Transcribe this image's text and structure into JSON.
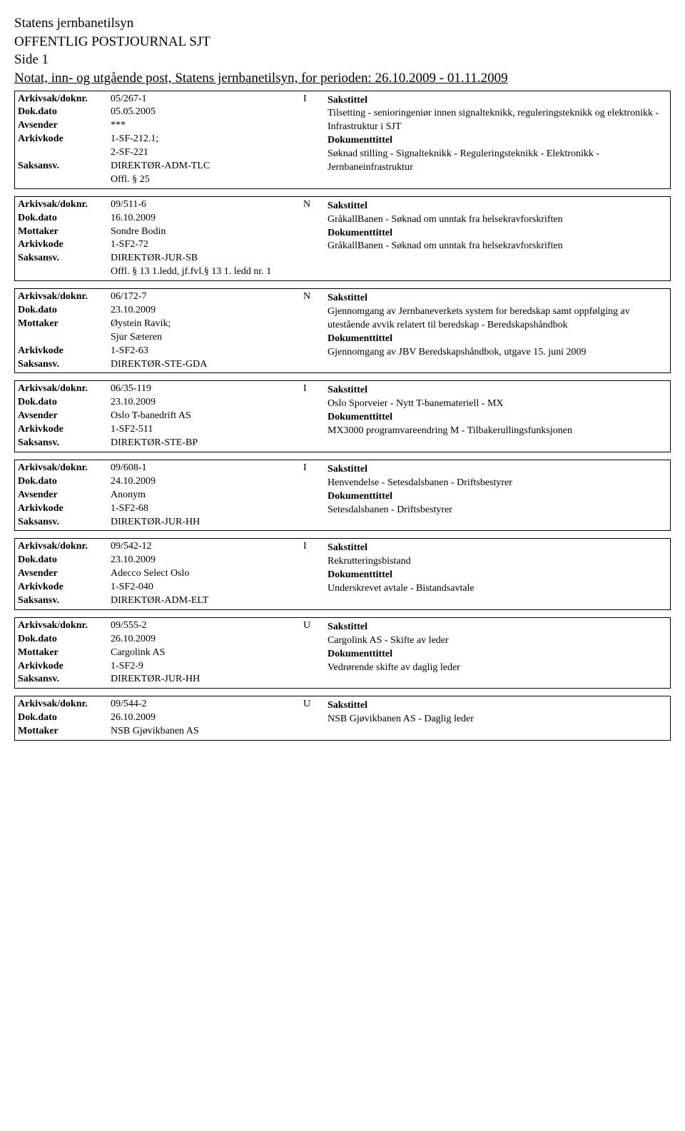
{
  "header": {
    "org": "Statens jernbanetilsyn",
    "title": "OFFENTLIG POSTJOURNAL SJT",
    "page": "Side 1",
    "subtitle": "Notat, inn- og utgående post, Statens jernbanetilsyn, for perioden: 26.10.2009 - 01.11.2009"
  },
  "labels": {
    "arkivsak": "Arkivsak/doknr.",
    "dokdato": "Dok.dato",
    "avsender": "Avsender",
    "mottaker": "Mottaker",
    "arkivkode": "Arkivkode",
    "saksansv": "Saksansv.",
    "sakstittel": "Sakstittel",
    "dokumenttittel": "Dokumenttittel"
  },
  "entries": [
    {
      "doknr": "05/267-1",
      "type": "I",
      "dokdato": "05.05.2005",
      "party_label": "Avsender",
      "party": "***",
      "party_extra": "",
      "arkivkode": "1-SF-212.1;\n2-SF-221",
      "saksansv": "DIREKTØR-ADM-TLC\nOffl. § 25",
      "sakstittel": "Tilsetting - senioringeniør innen signalteknikk, reguleringsteknikk og elektronikk - Infrastruktur i SJT",
      "dokumenttittel": "Søknad stilling - Signalteknikk - Reguleringsteknikk - Elektronikk - Jernbaneinfrastruktur"
    },
    {
      "doknr": "09/511-6",
      "type": "N",
      "dokdato": "16.10.2009",
      "party_label": "Mottaker",
      "party": "Sondre Bodin",
      "party_extra": "",
      "arkivkode": "1-SF2-72",
      "saksansv": "DIREKTØR-JUR-SB\nOffl. § 13 1.ledd, jf.fvl.§ 13 1. ledd nr. 1",
      "sakstittel": "GråkallBanen - Søknad om unntak fra helsekravforskriften",
      "dokumenttittel": "GråkallBanen - Søknad om unntak fra helsekravforskriften"
    },
    {
      "doknr": "06/172-7",
      "type": "N",
      "dokdato": "23.10.2009",
      "party_label": "Mottaker",
      "party": "Øystein Ravik;\nSjur Sæteren",
      "party_extra": "",
      "arkivkode": "1-SF2-63",
      "saksansv": "DIREKTØR-STE-GDA",
      "sakstittel": "Gjennomgang av Jernbaneverkets system for beredskap samt oppfølging av utestående avvik relatert til beredskap - Beredskapshåndbok",
      "dokumenttittel": "Gjennomgang av JBV Beredskapshåndbok, utgave 15. juni 2009"
    },
    {
      "doknr": "06/35-119",
      "type": "I",
      "dokdato": "23.10.2009",
      "party_label": "Avsender",
      "party": "Oslo T-banedrift AS",
      "party_extra": "",
      "arkivkode": "1-SF2-511",
      "saksansv": "DIREKTØR-STE-BP",
      "sakstittel": "Oslo Sporveier - Nytt T-banemateriell - MX",
      "dokumenttittel": "MX3000 programvareendring M - Tilbakerullingsfunksjonen"
    },
    {
      "doknr": "09/608-1",
      "type": "I",
      "dokdato": "24.10.2009",
      "party_label": "Avsender",
      "party": "Anonym",
      "party_extra": "",
      "arkivkode": "1-SF2-68",
      "saksansv": "DIREKTØR-JUR-HH",
      "sakstittel": "Henvendelse - Setesdalsbanen - Driftsbestyrer",
      "dokumenttittel": "Setesdalsbanen - Driftsbestyrer"
    },
    {
      "doknr": "09/542-12",
      "type": "I",
      "dokdato": "23.10.2009",
      "party_label": "Avsender",
      "party": "Adecco Select Oslo",
      "party_extra": "",
      "arkivkode": "1-SF2-040",
      "saksansv": "DIREKTØR-ADM-ELT",
      "sakstittel": "Rekrutteringsbistand",
      "dokumenttittel": "Underskrevet avtale - Bistandsavtale"
    },
    {
      "doknr": "09/555-2",
      "type": "U",
      "dokdato": "26.10.2009",
      "party_label": "Mottaker",
      "party": "Cargolink AS",
      "party_extra": "",
      "arkivkode": "1-SF2-9",
      "saksansv": "DIREKTØR-JUR-HH",
      "sakstittel": "Cargolink AS - Skifte av leder",
      "dokumenttittel": "Vedrørende skifte av daglig leder"
    },
    {
      "doknr": "09/544-2",
      "type": "U",
      "dokdato": "26.10.2009",
      "party_label": "Mottaker",
      "party": "NSB Gjøvikbanen AS",
      "party_extra": "",
      "arkivkode": "",
      "saksansv": "",
      "sakstittel": "NSB Gjøvikbanen AS - Daglig leder",
      "dokumenttittel": ""
    }
  ]
}
